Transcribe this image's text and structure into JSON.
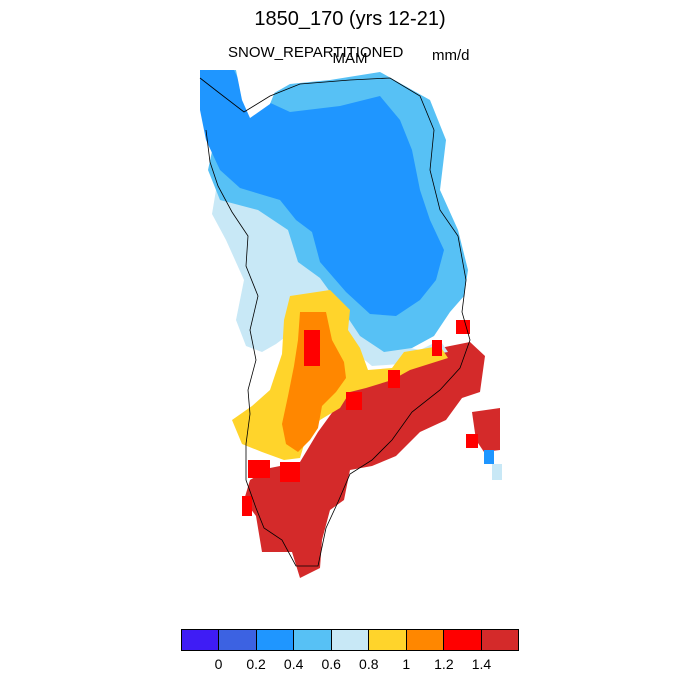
{
  "title": "1850_170 (yrs 12-21)",
  "subtitle_left": "SNOW_REPARTITIONED",
  "subtitle_center": "MAM",
  "units": "mm/d",
  "legend": {
    "colors": [
      "#3f1cf5",
      "#3c62e2",
      "#1f96ff",
      "#57c1f5",
      "#c8e8f6",
      "#ffd42b",
      "#ff8700",
      "#ff0000",
      "#d42a2a"
    ],
    "tick_labels": [
      "0",
      "0.2",
      "0.4",
      "0.6",
      "0.8",
      "1",
      "1.2",
      "1.4"
    ]
  },
  "chart_data": {
    "type": "heatmap",
    "region": "Greenland",
    "levels": [
      0,
      0.2,
      0.4,
      0.6,
      0.8,
      1,
      1.2,
      1.4
    ],
    "bins": [
      {
        "range": "<0",
        "color": "#3f1cf5"
      },
      {
        "range": "0-0.2",
        "color": "#3c62e2"
      },
      {
        "range": "0.2-0.4",
        "color": "#1f96ff"
      },
      {
        "range": "0.4-0.6",
        "color": "#57c1f5"
      },
      {
        "range": "0.6-0.8",
        "color": "#c8e8f6"
      },
      {
        "range": "0.8-1",
        "color": "#ffd42b"
      },
      {
        "range": "1-1.2",
        "color": "#ff8700"
      },
      {
        "range": "1.2-1.4",
        "color": "#ff0000"
      },
      {
        "range": ">1.4",
        "color": "#d42a2a"
      }
    ]
  }
}
